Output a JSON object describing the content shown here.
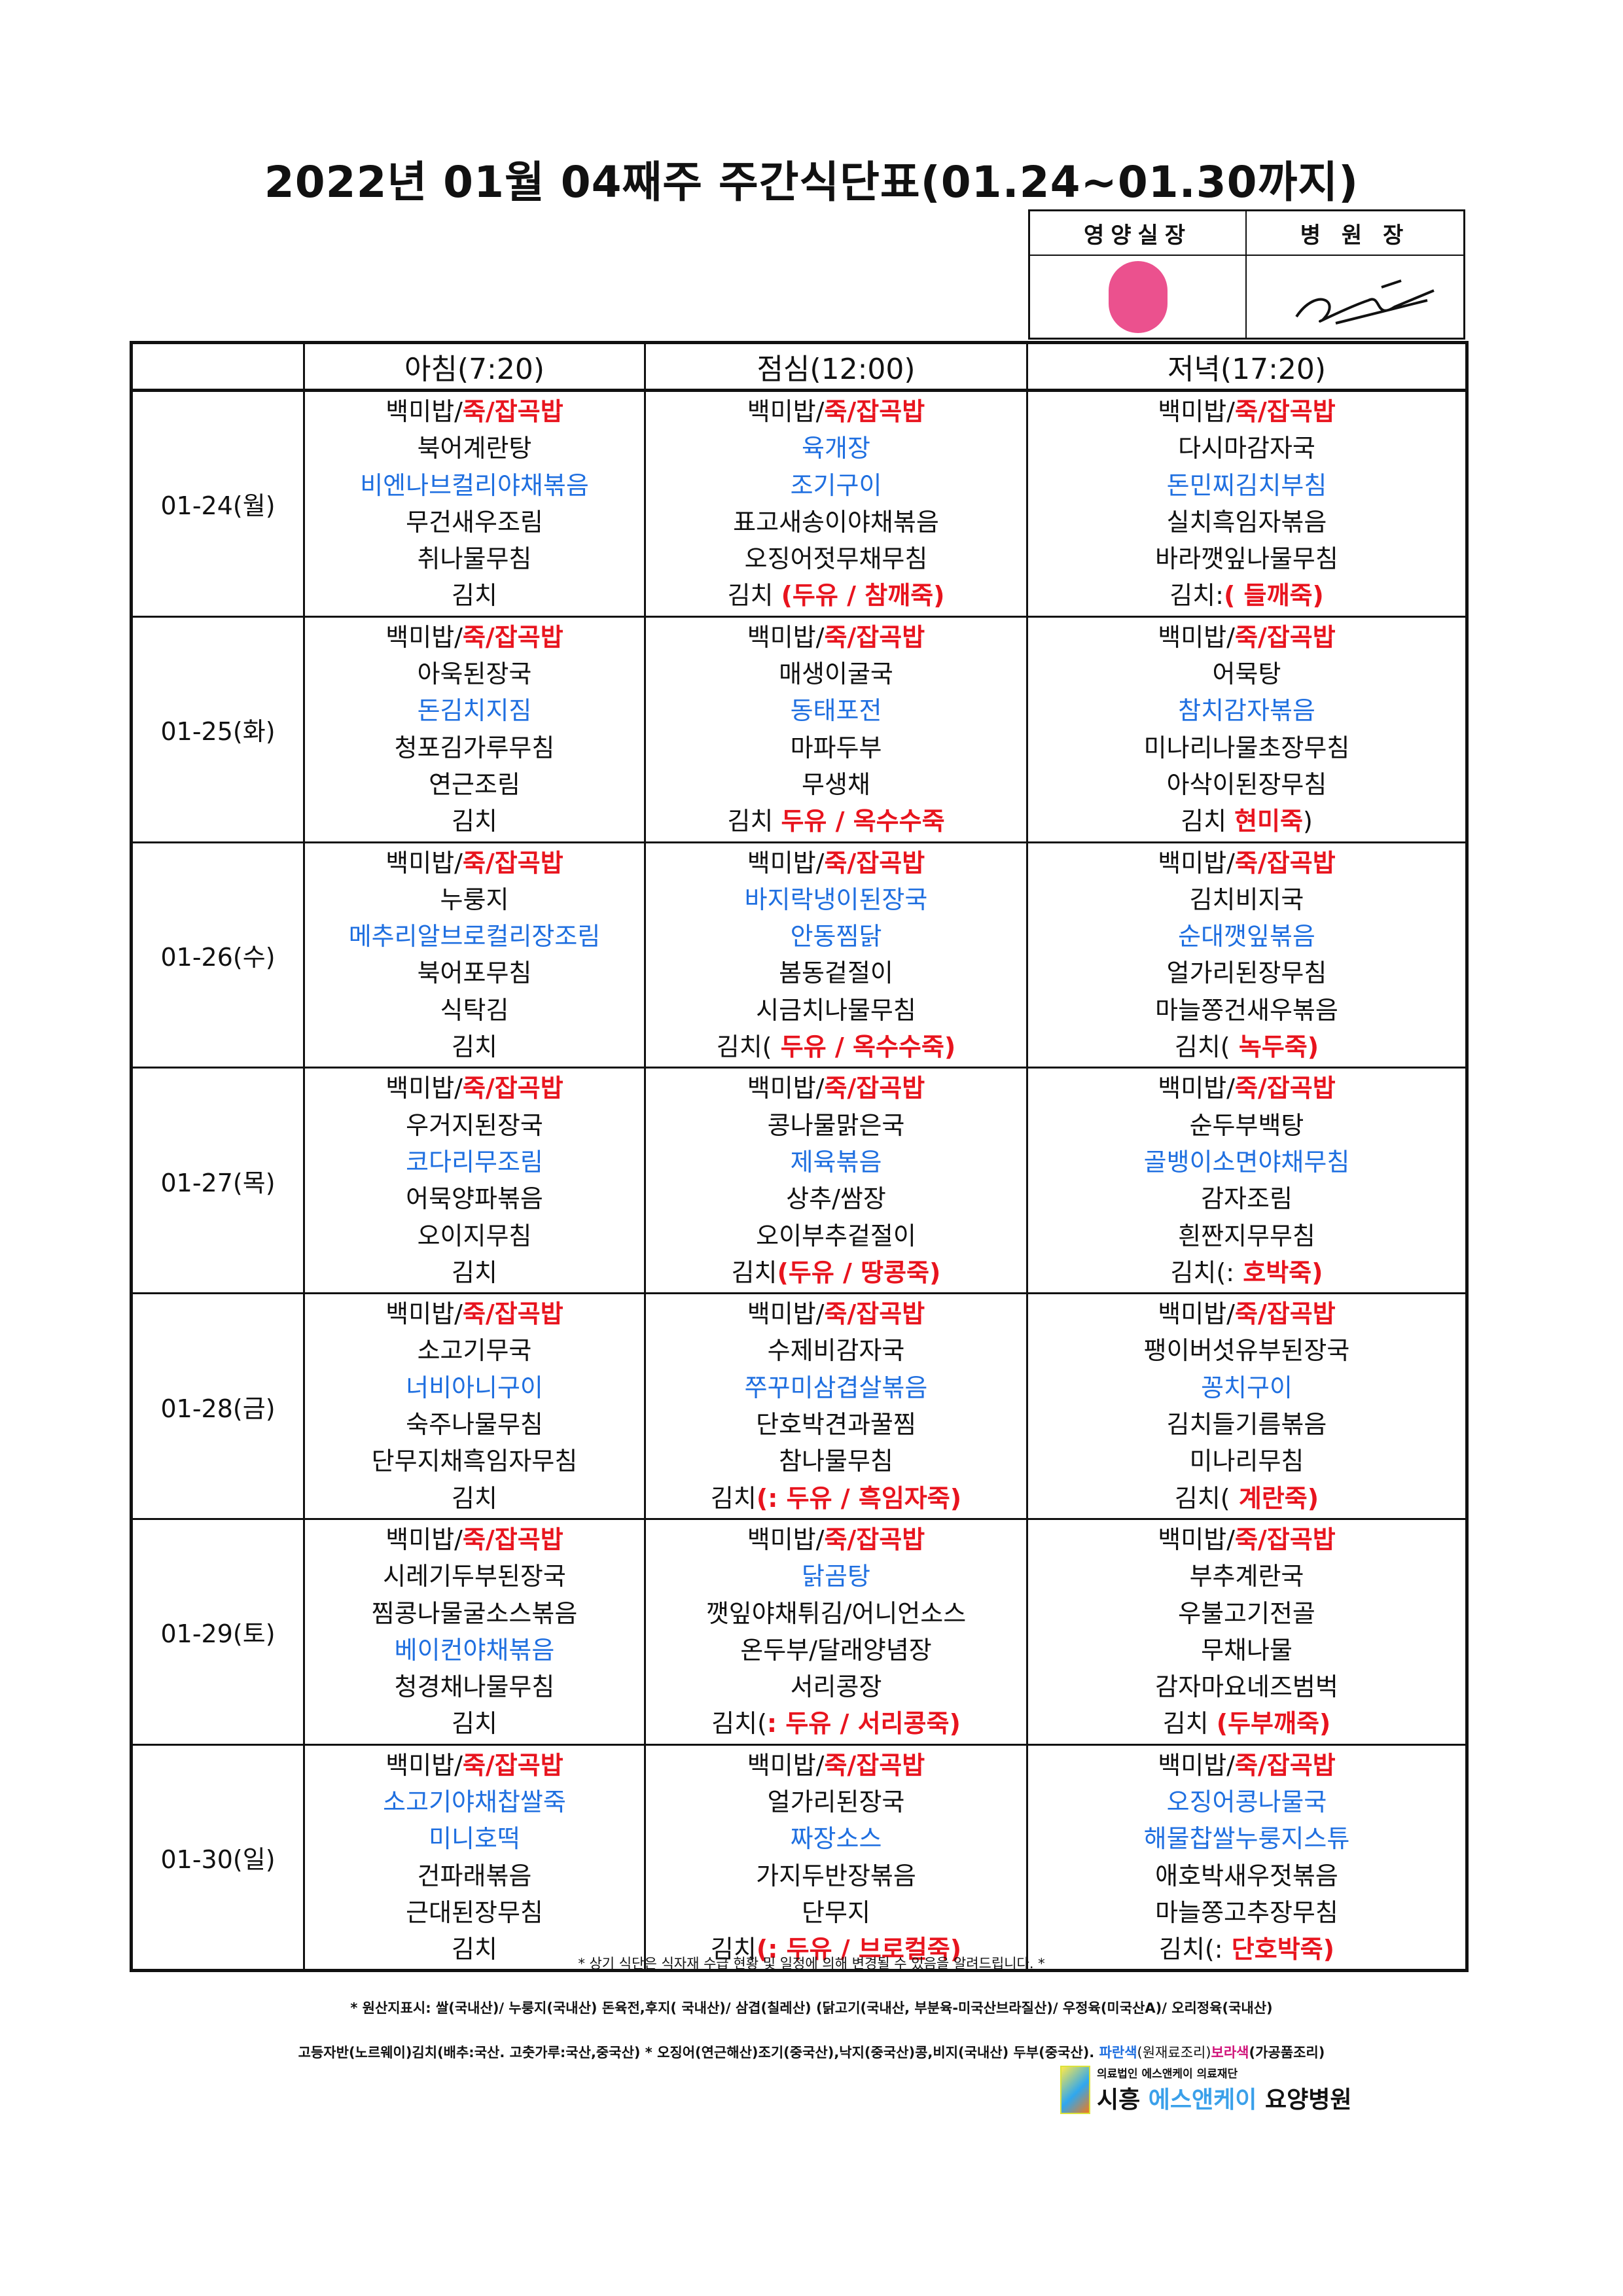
{
  "title": "2022년 01월 04째주 주간식단표(01.24~01.30까지)",
  "approval": {
    "col1": "영양실장",
    "col2": "병 원 장",
    "stamp_text": "영양실장"
  },
  "headers": {
    "date": "",
    "breakfast": "아침(7:20)",
    "lunch": "점심(12:00)",
    "dinner": "저녁(17:20)"
  },
  "colors": {
    "red": "#e8141e",
    "blue": "#1f6fe0"
  },
  "days": [
    {
      "date": "01-24(월)",
      "breakfast": [
        [
          [
            "백미밥/",
            "k"
          ],
          [
            "죽/잡곡밥",
            "r"
          ]
        ],
        [
          [
            "북어계란탕",
            "k"
          ]
        ],
        [
          [
            "비엔나브컬리야채볶음",
            "b"
          ]
        ],
        [
          [
            "무건새우조림",
            "k"
          ]
        ],
        [
          [
            "취나물무침",
            "k"
          ]
        ],
        [
          [
            "김치",
            "k"
          ]
        ]
      ],
      "lunch": [
        [
          [
            "백미밥/",
            "k"
          ],
          [
            "죽/잡곡밥",
            "r"
          ]
        ],
        [
          [
            "육개장",
            "b"
          ]
        ],
        [
          [
            "조기구이",
            "b"
          ]
        ],
        [
          [
            "표고새송이야채볶음",
            "k"
          ]
        ],
        [
          [
            "오징어젓무채무침",
            "k"
          ]
        ],
        [
          [
            "김치 ",
            "k"
          ],
          [
            "(두유 / 참깨죽)",
            "r"
          ]
        ]
      ],
      "dinner": [
        [
          [
            "백미밥/",
            "k"
          ],
          [
            "죽/잡곡밥",
            "r"
          ]
        ],
        [
          [
            "다시마감자국",
            "k"
          ]
        ],
        [
          [
            "돈민찌김치부침",
            "b"
          ]
        ],
        [
          [
            "실치흑임자볶음",
            "k"
          ]
        ],
        [
          [
            "바라깻잎나물무침",
            "k"
          ]
        ],
        [
          [
            "김치:",
            "k"
          ],
          [
            "( 들깨죽)",
            "r"
          ]
        ]
      ]
    },
    {
      "date": "01-25(화)",
      "breakfast": [
        [
          [
            "백미밥/",
            "k"
          ],
          [
            "죽/잡곡밥",
            "r"
          ]
        ],
        [
          [
            "아욱된장국",
            "k"
          ]
        ],
        [
          [
            "돈김치지짐",
            "b"
          ]
        ],
        [
          [
            "청포김가루무침",
            "k"
          ]
        ],
        [
          [
            "연근조림",
            "k"
          ]
        ],
        [
          [
            "김치",
            "k"
          ]
        ]
      ],
      "lunch": [
        [
          [
            "백미밥/",
            "k"
          ],
          [
            "죽/잡곡밥",
            "r"
          ]
        ],
        [
          [
            "매생이굴국",
            "k"
          ]
        ],
        [
          [
            "동태포전",
            "b"
          ]
        ],
        [
          [
            "마파두부",
            "k"
          ]
        ],
        [
          [
            "무생채",
            "k"
          ]
        ],
        [
          [
            "김치 ",
            "k"
          ],
          [
            "두유 / 옥수수죽",
            "r"
          ]
        ]
      ],
      "dinner": [
        [
          [
            "백미밥/",
            "k"
          ],
          [
            "죽/잡곡밥",
            "r"
          ]
        ],
        [
          [
            "어묵탕",
            "k"
          ]
        ],
        [
          [
            "참치감자볶음",
            "b"
          ]
        ],
        [
          [
            "미나리나물초장무침",
            "k"
          ]
        ],
        [
          [
            "아삭이된장무침",
            "k"
          ]
        ],
        [
          [
            "김치 ",
            "k"
          ],
          [
            "현미죽",
            "r"
          ],
          [
            ")",
            "k"
          ]
        ]
      ]
    },
    {
      "date": "01-26(수)",
      "breakfast": [
        [
          [
            "백미밥/",
            "k"
          ],
          [
            "죽/잡곡밥",
            "r"
          ]
        ],
        [
          [
            "누룽지",
            "k"
          ]
        ],
        [
          [
            "메추리알브로컬리장조림",
            "b"
          ]
        ],
        [
          [
            "북어포무침",
            "k"
          ]
        ],
        [
          [
            "식탁김",
            "k"
          ]
        ],
        [
          [
            "김치",
            "k"
          ]
        ]
      ],
      "lunch": [
        [
          [
            "백미밥/",
            "k"
          ],
          [
            "죽/잡곡밥",
            "r"
          ]
        ],
        [
          [
            "바지락냉이된장국",
            "b"
          ]
        ],
        [
          [
            "안동찜닭",
            "b"
          ]
        ],
        [
          [
            "봄동겉절이",
            "k"
          ]
        ],
        [
          [
            "시금치나물무침",
            "k"
          ]
        ],
        [
          [
            "김치(",
            "k"
          ],
          [
            " 두유 / 옥수수죽)",
            "r"
          ]
        ]
      ],
      "dinner": [
        [
          [
            "백미밥/",
            "k"
          ],
          [
            "죽/잡곡밥",
            "r"
          ]
        ],
        [
          [
            "김치비지국",
            "k"
          ]
        ],
        [
          [
            "순대깻잎볶음",
            "b"
          ]
        ],
        [
          [
            "얼가리된장무침",
            "k"
          ]
        ],
        [
          [
            "마늘쫑건새우볶음",
            "k"
          ]
        ],
        [
          [
            "김치(",
            "k"
          ],
          [
            " 녹두죽)",
            "r"
          ]
        ]
      ]
    },
    {
      "date": "01-27(목)",
      "breakfast": [
        [
          [
            "백미밥/",
            "k"
          ],
          [
            "죽/잡곡밥",
            "r"
          ]
        ],
        [
          [
            "우거지된장국",
            "k"
          ]
        ],
        [
          [
            "코다리무조림",
            "b"
          ]
        ],
        [
          [
            "어묵양파볶음",
            "k"
          ]
        ],
        [
          [
            "오이지무침",
            "k"
          ]
        ],
        [
          [
            "김치",
            "k"
          ]
        ]
      ],
      "lunch": [
        [
          [
            "백미밥/",
            "k"
          ],
          [
            "죽/잡곡밥",
            "r"
          ]
        ],
        [
          [
            "콩나물맑은국",
            "k"
          ]
        ],
        [
          [
            "제육볶음",
            "b"
          ]
        ],
        [
          [
            "상추/쌈장",
            "k"
          ]
        ],
        [
          [
            "오이부추겉절이",
            "k"
          ]
        ],
        [
          [
            "김치",
            "k"
          ],
          [
            "(두유 / 땅콩죽)",
            "r"
          ]
        ]
      ],
      "dinner": [
        [
          [
            "백미밥/",
            "k"
          ],
          [
            "죽/잡곡밥",
            "r"
          ]
        ],
        [
          [
            "순두부백탕",
            "k"
          ]
        ],
        [
          [
            "골뱅이소면야채무침",
            "b"
          ]
        ],
        [
          [
            "감자조림",
            "k"
          ]
        ],
        [
          [
            "흰짠지무무침",
            "k"
          ]
        ],
        [
          [
            "김치(:",
            "k"
          ],
          [
            " 호박죽)",
            "r"
          ]
        ]
      ]
    },
    {
      "date": "01-28(금)",
      "breakfast": [
        [
          [
            "백미밥/",
            "k"
          ],
          [
            "죽/잡곡밥",
            "r"
          ]
        ],
        [
          [
            "소고기무국",
            "k"
          ]
        ],
        [
          [
            "너비아니구이",
            "b"
          ]
        ],
        [
          [
            "숙주나물무침",
            "k"
          ]
        ],
        [
          [
            "단무지채흑임자무침",
            "k"
          ]
        ],
        [
          [
            "김치",
            "k"
          ]
        ]
      ],
      "lunch": [
        [
          [
            "백미밥/",
            "k"
          ],
          [
            "죽/잡곡밥",
            "r"
          ]
        ],
        [
          [
            "수제비감자국",
            "k"
          ]
        ],
        [
          [
            "쭈꾸미삼겹살볶음",
            "b"
          ]
        ],
        [
          [
            "단호박견과꿀찜",
            "k"
          ]
        ],
        [
          [
            "참나물무침",
            "k"
          ]
        ],
        [
          [
            "김치",
            "k"
          ],
          [
            "(: 두유 / 흑임자죽)",
            "r"
          ]
        ]
      ],
      "dinner": [
        [
          [
            "백미밥/",
            "k"
          ],
          [
            "죽/잡곡밥",
            "r"
          ]
        ],
        [
          [
            "팽이버섯유부된장국",
            "k"
          ]
        ],
        [
          [
            "꽁치구이",
            "b"
          ]
        ],
        [
          [
            "김치들기름볶음",
            "k"
          ]
        ],
        [
          [
            "미나리무침",
            "k"
          ]
        ],
        [
          [
            "김치(",
            "k"
          ],
          [
            " 계란죽)",
            "r"
          ]
        ]
      ]
    },
    {
      "date": "01-29(토)",
      "breakfast": [
        [
          [
            "백미밥/",
            "k"
          ],
          [
            "죽/잡곡밥",
            "r"
          ]
        ],
        [
          [
            "시레기두부된장국",
            "k"
          ]
        ],
        [
          [
            "찜콩나물굴소스볶음",
            "k"
          ]
        ],
        [
          [
            "베이컨야채볶음",
            "b"
          ]
        ],
        [
          [
            "청경채나물무침",
            "k"
          ]
        ],
        [
          [
            "김치",
            "k"
          ]
        ]
      ],
      "lunch": [
        [
          [
            "백미밥/",
            "k"
          ],
          [
            "죽/잡곡밥",
            "r"
          ]
        ],
        [
          [
            "닭곰탕",
            "b"
          ]
        ],
        [
          [
            "깻잎야채튀김/어니언소스",
            "k"
          ]
        ],
        [
          [
            "온두부/달래양념장",
            "k"
          ]
        ],
        [
          [
            "서리콩장",
            "k"
          ]
        ],
        [
          [
            "김치(",
            "k"
          ],
          [
            ": 두유 / 서리콩죽)",
            "r"
          ]
        ]
      ],
      "dinner": [
        [
          [
            "백미밥/",
            "k"
          ],
          [
            "죽/잡곡밥",
            "r"
          ]
        ],
        [
          [
            "부추계란국",
            "k"
          ]
        ],
        [
          [
            "우불고기전골",
            "k"
          ]
        ],
        [
          [
            "무채나물",
            "k"
          ]
        ],
        [
          [
            "감자마요네즈범벅",
            "k"
          ]
        ],
        [
          [
            "김치 ",
            "k"
          ],
          [
            "(두부깨죽)",
            "r"
          ]
        ]
      ]
    },
    {
      "date": "01-30(일)",
      "breakfast": [
        [
          [
            "백미밥/",
            "k"
          ],
          [
            "죽/잡곡밥",
            "r"
          ]
        ],
        [
          [
            "소고기야채찹쌀죽",
            "b"
          ]
        ],
        [
          [
            "미니호떡",
            "b"
          ]
        ],
        [
          [
            "건파래볶음",
            "k"
          ]
        ],
        [
          [
            "근대된장무침",
            "k"
          ]
        ],
        [
          [
            "김치",
            "k"
          ]
        ]
      ],
      "lunch": [
        [
          [
            "백미밥/",
            "k"
          ],
          [
            "죽/잡곡밥",
            "r"
          ]
        ],
        [
          [
            "얼가리된장국",
            "k"
          ]
        ],
        [
          [
            "짜장소스",
            "b"
          ]
        ],
        [
          [
            "가지두반장볶음",
            "k"
          ]
        ],
        [
          [
            "단무지",
            "k"
          ]
        ],
        [
          [
            "김치",
            "k"
          ],
          [
            "(: 두유 / 브로컬죽)",
            "r"
          ]
        ]
      ],
      "dinner": [
        [
          [
            "백미밥/",
            "k"
          ],
          [
            "죽/잡곡밥",
            "r"
          ]
        ],
        [
          [
            "오징어콩나물국",
            "b"
          ]
        ],
        [
          [
            "해물찹쌀누룽지스튜",
            "b"
          ]
        ],
        [
          [
            "애호박새우젓볶음",
            "k"
          ]
        ],
        [
          [
            "마늘쫑고추장무침",
            "k"
          ]
        ],
        [
          [
            "김치(:",
            "k"
          ],
          [
            " 단호박죽)",
            "r"
          ]
        ]
      ]
    }
  ],
  "notes": {
    "disclaimer": "* 상기 식단은 식자재 수급 현황 및 일정에 의해 변경될 수 있음을 알려드립니다. *",
    "origin1": "* 원산지표시: 쌀(국내산)/ 누룽지(국내산) 돈육전,후지( 국내산)/ 삼겹(칠레산) (닭고기(국내산, 부분육-미국산브라질산)/ 우정육(미국산A)/ 오리정육(국내산)",
    "origin2": "고등자반(노르웨이)김치(배추:국산. 고춧가루:국산,중국산) * 오징어(연근해산)조기(중국산),낙지(중국산)콩,비지(국내산) 두부(중국산). ",
    "legend_blue": "파란색",
    "legend_blue_desc": "(원재료조리)",
    "legend_purple": "보라색",
    "legend_purple_desc": "(가공품조리)"
  },
  "logo": {
    "sub": "의료법인 에스앤케이 의료재단",
    "city": "시흥",
    "brand": "에스앤케이",
    "suffix": "요양병원"
  }
}
